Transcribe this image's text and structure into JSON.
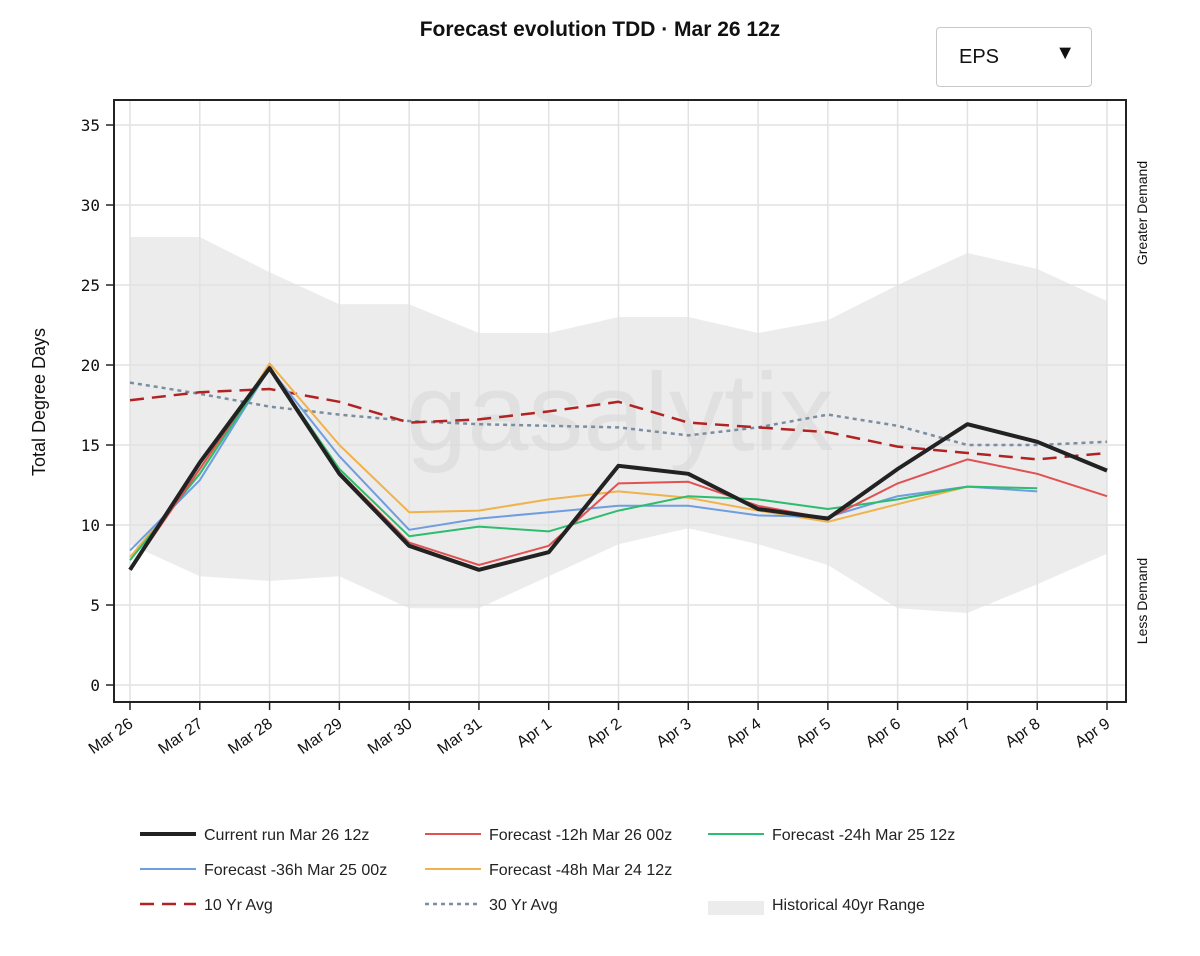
{
  "model_selector": {
    "value": "EPS",
    "caret": "▼"
  },
  "watermark": "gasalytix",
  "side_labels": {
    "top": "Greater Demand",
    "bottom": "Less Demand"
  },
  "colors": {
    "current": "#222222",
    "f12": "#e05252",
    "f24": "#2dbd6e",
    "f36": "#6f9de0",
    "f48": "#f0b24d",
    "avg10": "#b22222",
    "avg30": "#7a8ea0",
    "range": "#ececec"
  },
  "chart_data": {
    "type": "line",
    "title": "Forecast evolution TDD · Mar 26 12z",
    "ylabel": "Total Degree Days",
    "xlabel": "",
    "ylim": [
      -1,
      36
    ],
    "yticks": [
      0,
      5,
      10,
      15,
      20,
      25,
      30,
      35
    ],
    "grid": true,
    "categories": [
      "Mar 26",
      "Mar 27",
      "Mar 28",
      "Mar 29",
      "Mar 30",
      "Mar 31",
      "Apr 1",
      "Apr 2",
      "Apr 3",
      "Apr 4",
      "Apr 5",
      "Apr 6",
      "Apr 7",
      "Apr 8",
      "Apr 9"
    ],
    "range": {
      "name": "Historical 40yr Range",
      "low": [
        8.8,
        6.8,
        6.5,
        6.8,
        4.8,
        4.8,
        6.8,
        8.8,
        9.8,
        8.8,
        7.5,
        4.8,
        4.5,
        6.3,
        8.2
      ],
      "high": [
        28.0,
        28.0,
        25.8,
        23.8,
        23.8,
        22.0,
        22.0,
        23.0,
        23.0,
        22.0,
        22.8,
        25.0,
        27.0,
        26.0,
        24.0
      ]
    },
    "series": [
      {
        "key": "avg30",
        "name": "30 Yr Avg",
        "style": "dotted",
        "values": [
          18.9,
          18.2,
          17.4,
          16.9,
          16.5,
          16.3,
          16.2,
          16.1,
          15.6,
          16.1,
          16.9,
          16.2,
          15.0,
          15.0,
          15.2
        ]
      },
      {
        "key": "avg10",
        "name": "10 Yr Avg",
        "style": "dashed",
        "values": [
          17.8,
          18.3,
          18.5,
          17.7,
          16.4,
          16.6,
          17.1,
          17.7,
          16.4,
          16.1,
          15.8,
          14.9,
          14.5,
          14.1,
          14.5
        ]
      },
      {
        "key": "f48",
        "name": "Forecast -48h Mar 24 12z",
        "style": "solid",
        "values": [
          8.0,
          13.2,
          20.1,
          15.0,
          10.8,
          10.9,
          11.6,
          12.1,
          11.7,
          10.9,
          10.2,
          11.3,
          12.4,
          null,
          null
        ]
      },
      {
        "key": "f36",
        "name": "Forecast -36h Mar 25 00z",
        "style": "solid",
        "values": [
          8.4,
          12.8,
          19.8,
          14.3,
          9.7,
          10.4,
          10.8,
          11.2,
          11.2,
          10.6,
          10.5,
          11.8,
          12.4,
          12.1,
          null
        ]
      },
      {
        "key": "f24",
        "name": "Forecast -24h Mar 25 12z",
        "style": "solid",
        "values": [
          7.8,
          13.2,
          19.8,
          13.5,
          9.3,
          9.9,
          9.6,
          10.9,
          11.8,
          11.6,
          11.0,
          11.6,
          12.4,
          12.3,
          null
        ]
      },
      {
        "key": "f12",
        "name": "Forecast -12h Mar 26 00z",
        "style": "solid",
        "values": [
          7.2,
          13.5,
          19.9,
          13.3,
          8.9,
          7.5,
          8.7,
          12.6,
          12.7,
          11.2,
          10.4,
          12.6,
          14.1,
          13.2,
          11.8
        ]
      },
      {
        "key": "current",
        "name": "Current run Mar 26 12z",
        "style": "solid",
        "values": [
          7.2,
          13.9,
          19.8,
          13.2,
          8.7,
          7.2,
          8.3,
          13.7,
          13.2,
          11.0,
          10.4,
          13.5,
          16.3,
          15.2,
          13.4
        ]
      }
    ],
    "legend": [
      [
        {
          "key": "current",
          "label": "Current run Mar 26 12z"
        },
        {
          "key": "f12",
          "label": "Forecast -12h Mar 26 00z"
        },
        {
          "key": "f24",
          "label": "Forecast -24h Mar 25 12z"
        }
      ],
      [
        {
          "key": "f36",
          "label": "Forecast -36h Mar 25 00z"
        },
        {
          "key": "f48",
          "label": "Forecast -48h Mar 24 12z"
        }
      ],
      [
        {
          "key": "avg10",
          "label": "10 Yr Avg"
        },
        {
          "key": "avg30",
          "label": "30 Yr Avg"
        },
        {
          "key": "range",
          "label": "Historical 40yr Range"
        }
      ]
    ],
    "legend_position": "bottom"
  }
}
